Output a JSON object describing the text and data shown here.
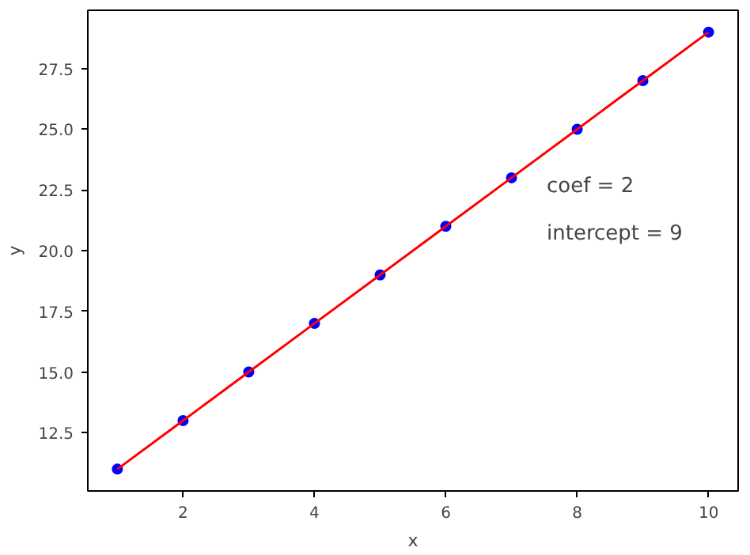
{
  "chart_data": {
    "type": "scatter",
    "xlabel": "x",
    "ylabel": "y",
    "x": [
      1,
      2,
      3,
      4,
      5,
      6,
      7,
      8,
      9,
      10
    ],
    "series": [
      {
        "color": "#0000ff",
        "values": [
          11,
          13,
          15,
          17,
          19,
          21,
          23,
          25,
          27,
          29
        ],
        "marker": "circle"
      },
      {
        "type": "line",
        "color": "#ff0000",
        "values": [
          11,
          13,
          15,
          17,
          19,
          21,
          23,
          25,
          27,
          29
        ],
        "marker": "none",
        "line_style": "solid"
      }
    ],
    "xlim": [
      0.55,
      10.45
    ],
    "ylim": [
      10.1,
      29.9
    ],
    "xticks": [
      2,
      4,
      6,
      8,
      10
    ],
    "yticks": [
      {
        "value": 12.5,
        "label": "12.5"
      },
      {
        "value": 15,
        "label": "15.0"
      },
      {
        "value": 17.5,
        "label": "17.5"
      },
      {
        "value": 20,
        "label": "20.0"
      },
      {
        "value": 22.5,
        "label": "22.5"
      },
      {
        "value": 25,
        "label": "25.0"
      },
      {
        "value": 27.5,
        "label": "27.5"
      }
    ],
    "annotations": [
      "coef = 2",
      "intercept = 9"
    ],
    "grid": false
  }
}
